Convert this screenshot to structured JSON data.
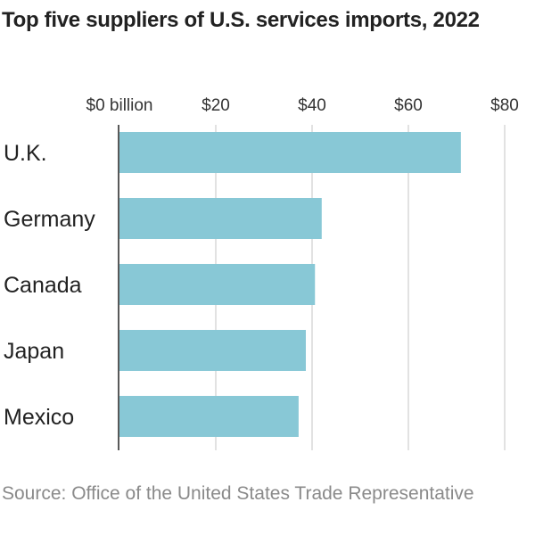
{
  "chart_data": {
    "type": "bar",
    "orientation": "horizontal",
    "title": "Top five suppliers of U.S. services imports, 2022",
    "categories": [
      "U.K.",
      "Germany",
      "Canada",
      "Japan",
      "Mexico"
    ],
    "values": [
      70.9,
      42.0,
      40.6,
      38.7,
      37.2
    ],
    "unit": "billion USD",
    "xlim": [
      0,
      80
    ],
    "xticks": [
      0,
      20,
      40,
      60,
      80
    ],
    "xtick_labels": [
      "$0 billion",
      "$20",
      "$40",
      "$60",
      "$80"
    ],
    "grid": true,
    "bar_color": "#88c8d6",
    "source": "Source: Office of the United States Trade Representative"
  }
}
